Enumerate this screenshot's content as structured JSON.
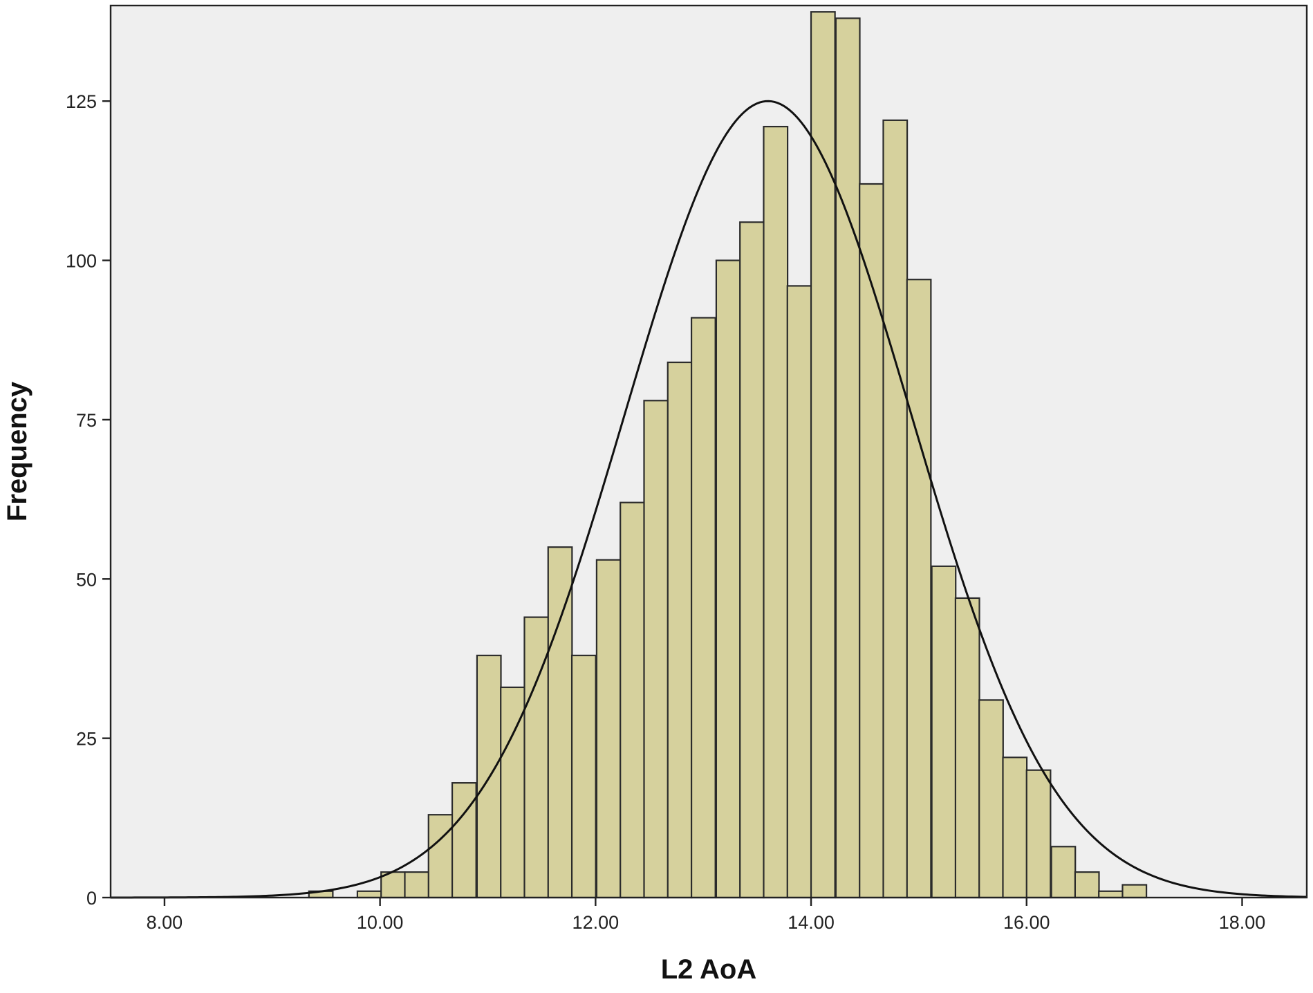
{
  "chart_data": {
    "type": "bar",
    "subtype": "histogram",
    "xlabel": "L2 AoA",
    "ylabel": "Frequency",
    "xlim": [
      7.5,
      18.6
    ],
    "ylim": [
      0,
      140
    ],
    "x_ticks": [
      8,
      10,
      12,
      14,
      16,
      18
    ],
    "x_tick_labels": [
      "8.00",
      "10.00",
      "12.00",
      "14.00",
      "16.00",
      "18.00"
    ],
    "y_ticks": [
      0,
      25,
      50,
      75,
      100,
      125
    ],
    "y_tick_labels": [
      "0",
      "25",
      "50",
      "75",
      "100",
      "125"
    ],
    "grid": false,
    "background_color": "#efefef",
    "bar_color": "#d6d19d",
    "bar_edge_color": "#2b2b2b",
    "bin_width": 0.222,
    "bins": [
      {
        "x0": 9.34,
        "value": 1
      },
      {
        "x0": 9.56,
        "value": 0
      },
      {
        "x0": 9.79,
        "value": 1
      },
      {
        "x0": 10.01,
        "value": 4
      },
      {
        "x0": 10.23,
        "value": 4
      },
      {
        "x0": 10.45,
        "value": 13
      },
      {
        "x0": 10.67,
        "value": 18
      },
      {
        "x0": 10.9,
        "value": 38
      },
      {
        "x0": 11.12,
        "value": 33
      },
      {
        "x0": 11.34,
        "value": 44
      },
      {
        "x0": 11.56,
        "value": 55
      },
      {
        "x0": 11.78,
        "value": 38
      },
      {
        "x0": 12.01,
        "value": 53
      },
      {
        "x0": 12.23,
        "value": 62
      },
      {
        "x0": 12.45,
        "value": 78
      },
      {
        "x0": 12.67,
        "value": 84
      },
      {
        "x0": 12.89,
        "value": 91
      },
      {
        "x0": 13.12,
        "value": 100
      },
      {
        "x0": 13.34,
        "value": 106
      },
      {
        "x0": 13.56,
        "value": 121
      },
      {
        "x0": 13.78,
        "value": 96
      },
      {
        "x0": 14.0,
        "value": 139
      },
      {
        "x0": 14.23,
        "value": 138
      },
      {
        "x0": 14.45,
        "value": 112
      },
      {
        "x0": 14.67,
        "value": 122
      },
      {
        "x0": 14.89,
        "value": 97
      },
      {
        "x0": 15.12,
        "value": 52
      },
      {
        "x0": 15.34,
        "value": 47
      },
      {
        "x0": 15.56,
        "value": 31
      },
      {
        "x0": 15.78,
        "value": 22
      },
      {
        "x0": 16.0,
        "value": 20
      },
      {
        "x0": 16.23,
        "value": 8
      },
      {
        "x0": 16.45,
        "value": 4
      },
      {
        "x0": 16.67,
        "value": 1
      },
      {
        "x0": 16.89,
        "value": 2
      }
    ],
    "normal_curve": {
      "mean": 13.6,
      "sd": 1.33,
      "peak": 125
    }
  }
}
